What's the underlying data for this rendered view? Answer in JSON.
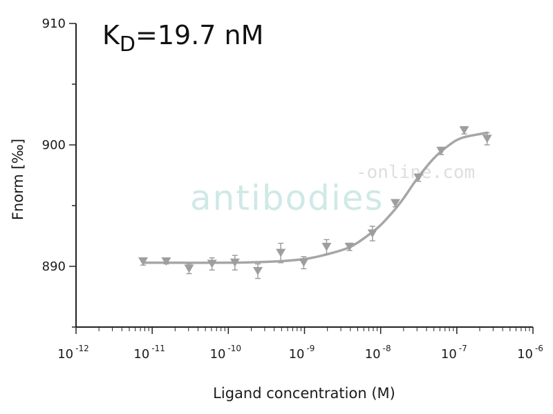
{
  "chart_data": {
    "type": "scatter",
    "title": "",
    "annotation": {
      "k": "K",
      "sub": "D",
      "rest": "=19.7 nM"
    },
    "xlabel": "Ligand concentration (M)",
    "ylabel": "Fnorm [‰]",
    "xscale": "log",
    "xlim": [
      1e-12,
      1e-06
    ],
    "ylim": [
      885,
      910
    ],
    "x_tick_labels": [
      {
        "base": "10",
        "exp": "-12"
      },
      {
        "base": "10",
        "exp": "-11"
      },
      {
        "base": "10",
        "exp": "-10"
      },
      {
        "base": "10",
        "exp": "-9"
      },
      {
        "base": "10",
        "exp": "-8"
      },
      {
        "base": "10",
        "exp": "-7"
      },
      {
        "base": "10",
        "exp": "-6"
      }
    ],
    "y_ticks": [
      890,
      900,
      910
    ],
    "y_tick_labels": [
      "890",
      "900",
      "910"
    ],
    "series": [
      {
        "marker": "triangle-down",
        "color": "#9e9e9e",
        "points": [
          {
            "x": 7.6e-12,
            "y": 890.4,
            "err": 0.3
          },
          {
            "x": 1.53e-11,
            "y": 890.4,
            "err": 0.2
          },
          {
            "x": 3.05e-11,
            "y": 889.8,
            "err": 0.4
          },
          {
            "x": 6.1e-11,
            "y": 890.2,
            "err": 0.5
          },
          {
            "x": 1.22e-10,
            "y": 890.3,
            "err": 0.6
          },
          {
            "x": 2.44e-10,
            "y": 889.6,
            "err": 0.6
          },
          {
            "x": 4.88e-10,
            "y": 891.1,
            "err": 0.8
          },
          {
            "x": 9.77e-10,
            "y": 890.3,
            "err": 0.5
          },
          {
            "x": 1.95e-09,
            "y": 891.6,
            "err": 0.6
          },
          {
            "x": 3.9e-09,
            "y": 891.6,
            "err": 0.3
          },
          {
            "x": 7.8e-09,
            "y": 892.7,
            "err": 0.6
          },
          {
            "x": 1.56e-08,
            "y": 895.2,
            "err": 0.3
          },
          {
            "x": 3.13e-08,
            "y": 897.3,
            "err": 0.3
          },
          {
            "x": 6.25e-08,
            "y": 899.5,
            "err": 0.3
          },
          {
            "x": 1.25e-07,
            "y": 901.2,
            "err": 0.3
          },
          {
            "x": 2.5e-07,
            "y": 900.5,
            "err": 0.5
          }
        ]
      }
    ],
    "fit": {
      "type": "sigmoid",
      "color": "#a6a6a6",
      "x_range": [
        7.6e-12,
        2.5e-07
      ],
      "points": [
        {
          "x": 7.6e-12,
          "y": 890.3
        },
        {
          "x": 1e-10,
          "y": 890.3
        },
        {
          "x": 4e-10,
          "y": 890.4
        },
        {
          "x": 1e-09,
          "y": 890.6
        },
        {
          "x": 2e-09,
          "y": 891.0
        },
        {
          "x": 4e-09,
          "y": 891.6
        },
        {
          "x": 7e-09,
          "y": 892.6
        },
        {
          "x": 1e-08,
          "y": 893.4
        },
        {
          "x": 1.5e-08,
          "y": 894.6
        },
        {
          "x": 2e-08,
          "y": 895.6
        },
        {
          "x": 3e-08,
          "y": 897.2
        },
        {
          "x": 5e-08,
          "y": 898.9
        },
        {
          "x": 8e-08,
          "y": 900.0
        },
        {
          "x": 1.2e-07,
          "y": 900.6
        },
        {
          "x": 2.5e-07,
          "y": 901.0
        }
      ]
    },
    "watermark": {
      "main": "antibodies",
      "sub": "-online.com"
    }
  }
}
